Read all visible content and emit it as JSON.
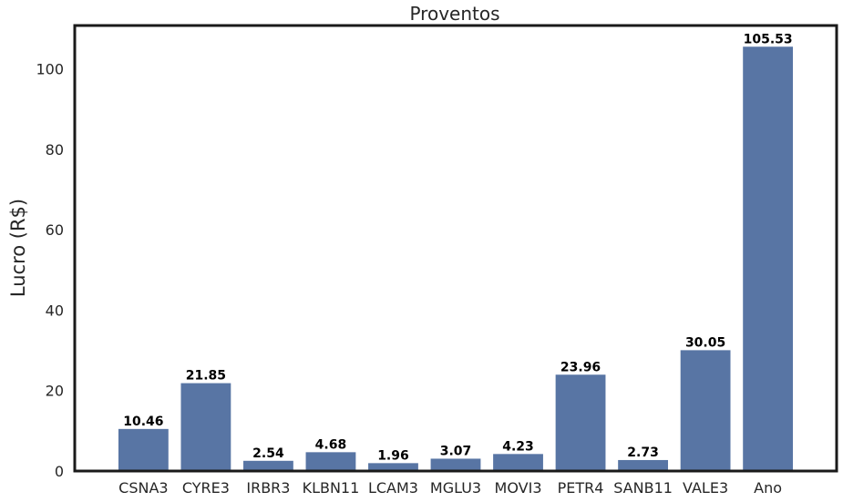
{
  "chart_data": {
    "type": "bar",
    "title": "Proventos",
    "xlabel": "",
    "ylabel": "Lucro  (R$)",
    "categories": [
      "CSNA3",
      "CYRE3",
      "IRBR3",
      "KLBN11",
      "LCAM3",
      "MGLU3",
      "MOVI3",
      "PETR4",
      "SANB11",
      "VALE3",
      "Ano"
    ],
    "values": [
      10.46,
      21.85,
      2.54,
      4.68,
      1.96,
      3.07,
      4.23,
      23.96,
      2.73,
      30.05,
      105.53
    ],
    "data_labels": [
      "10.46",
      "21.85",
      "2.54",
      "4.68",
      "1.96",
      "3.07",
      "4.23",
      "23.96",
      "2.73",
      "30.05",
      "105.53"
    ],
    "yticks": [
      0,
      20,
      40,
      60,
      80,
      100
    ],
    "ylim": [
      0,
      110.8
    ],
    "grid": false,
    "bar_color": "#5875a4",
    "frame_color": "#1a1a1a"
  }
}
